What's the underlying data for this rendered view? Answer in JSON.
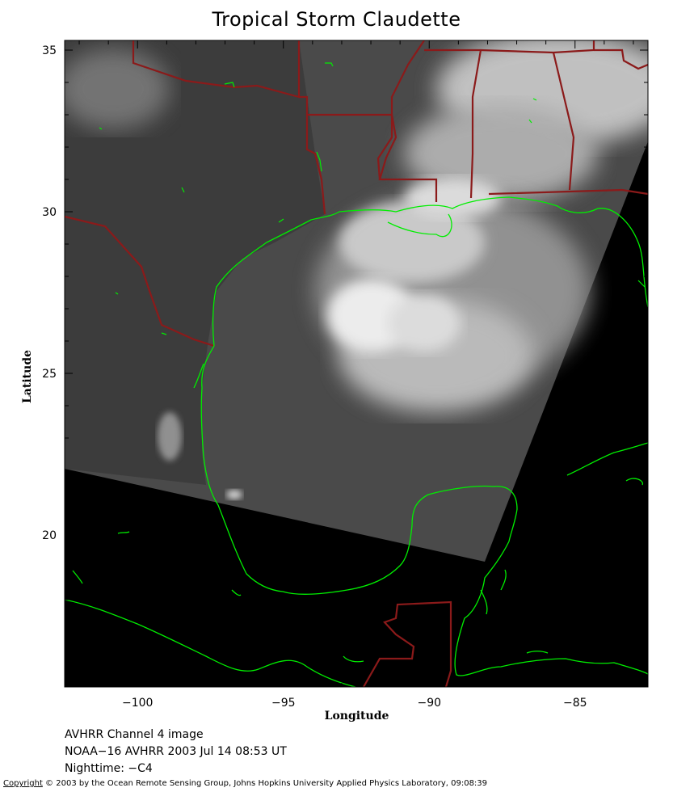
{
  "title": "Tropical Storm Claudette",
  "axes": {
    "xlabel": "Longitude",
    "ylabel": "Latitude",
    "x_ticks": [
      {
        "value": -100,
        "label": "−100"
      },
      {
        "value": -95,
        "label": "−95"
      },
      {
        "value": -90,
        "label": "−90"
      },
      {
        "value": -85,
        "label": "−85"
      }
    ],
    "y_ticks": [
      {
        "value": 35,
        "label": "35"
      },
      {
        "value": 30,
        "label": "30"
      },
      {
        "value": 25,
        "label": "25"
      },
      {
        "value": 20,
        "label": "20"
      }
    ],
    "lon_range": [
      -102.5,
      -82.5
    ],
    "lat_range": [
      15.3,
      35.3
    ]
  },
  "captions": {
    "line1": "AVHRR Channel 4 image",
    "line2": "NOAA−16 AVHRR 2003 Jul 14 08:53 UT",
    "line3": "Nighttime: −C4"
  },
  "copyright": {
    "word": "Copyright",
    "text": " © 2003 by the Ocean Remote Sensing Group, Johns Hopkins University Applied Physics Laboratory, 09:08:39"
  },
  "colors": {
    "coastline": "#00ee00",
    "borders": "#8b1a1a",
    "no_data": "#000000",
    "cloud": "#ffffff"
  }
}
